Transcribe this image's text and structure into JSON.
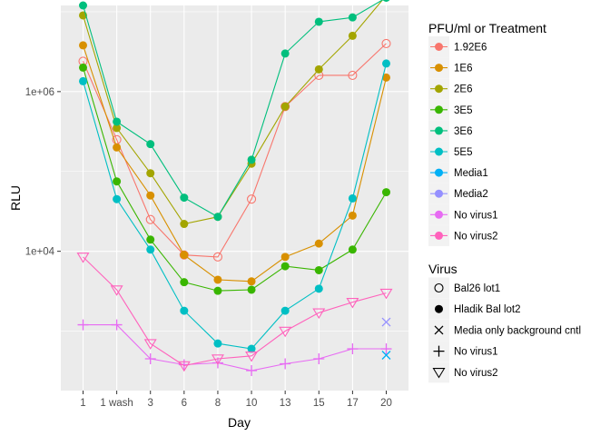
{
  "chart_data": {
    "type": "line",
    "xlabel": "Day",
    "ylabel": "RLU",
    "y_scale": "log10",
    "ylim": [
      180,
      12000000
    ],
    "y_ticks": [
      {
        "value": 10000,
        "label": "1e+04"
      },
      {
        "value": 1000000,
        "label": "1e+06"
      }
    ],
    "categories": [
      "1",
      "1 wash",
      "3",
      "6",
      "8",
      "10",
      "13",
      "15",
      "17",
      "20"
    ],
    "grid": true,
    "legend_position": "right",
    "color_legend": {
      "title": "PFU/ml or Treatment",
      "entries": [
        {
          "label": "1.92E6",
          "color": "#F8766D"
        },
        {
          "label": "1E6",
          "color": "#D89000"
        },
        {
          "label": "2E6",
          "color": "#A3A500"
        },
        {
          "label": "3E5",
          "color": "#39B600"
        },
        {
          "label": "3E6",
          "color": "#00BF7D"
        },
        {
          "label": "5E5",
          "color": "#00BFC4"
        },
        {
          "label": "Media1",
          "color": "#00B0F6"
        },
        {
          "label": "Media2",
          "color": "#9590FF"
        },
        {
          "label": "No virus1",
          "color": "#E76BF3"
        },
        {
          "label": "No virus2",
          "color": "#FF62BC"
        }
      ]
    },
    "shape_legend": {
      "title": "Virus",
      "entries": [
        {
          "label": "Bal26 lot1",
          "shape": "open-circle"
        },
        {
          "label": "Hladik Bal lot2",
          "shape": "filled-circle"
        },
        {
          "label": "Media only background cntl",
          "shape": "cross-x"
        },
        {
          "label": "No virus1",
          "shape": "plus"
        },
        {
          "label": "No virus2",
          "shape": "open-triangle-down"
        }
      ]
    },
    "series": [
      {
        "name": "1.92E6",
        "color": "#F8766D",
        "shape": "open-circle",
        "values": [
          2400000,
          250000,
          25000,
          9000,
          8500,
          45000,
          650000,
          1600000,
          1600000,
          4000000
        ]
      },
      {
        "name": "1E6",
        "color": "#D89000",
        "shape": "filled-circle",
        "values": [
          3800000,
          200000,
          50000,
          9000,
          4400,
          4200,
          8500,
          12500,
          28000,
          1500000
        ]
      },
      {
        "name": "2E6",
        "color": "#A3A500",
        "shape": "filled-circle",
        "values": [
          9000000,
          350000,
          95000,
          22000,
          27000,
          125000,
          650000,
          1900000,
          5000000,
          16000000
        ]
      },
      {
        "name": "3E5",
        "color": "#39B600",
        "shape": "filled-circle",
        "values": [
          2000000,
          75000,
          14000,
          4100,
          3200,
          3300,
          6500,
          5800,
          10500,
          55000
        ]
      },
      {
        "name": "3E6",
        "color": "#00BF7D",
        "shape": "filled-circle",
        "values": [
          12000000,
          420000,
          220000,
          47000,
          27000,
          140000,
          3000000,
          7500000,
          8500000,
          15000000
        ]
      },
      {
        "name": "5E5",
        "color": "#00BFC4",
        "shape": "filled-circle",
        "values": [
          1350000,
          45000,
          10500,
          1800,
          700,
          600,
          1800,
          3400,
          46000,
          2250000
        ]
      },
      {
        "name": "No virus1",
        "color": "#E76BF3",
        "shape": "plus",
        "values": [
          1200,
          1200,
          450,
          380,
          400,
          320,
          390,
          450,
          600,
          600
        ]
      },
      {
        "name": "No virus2",
        "color": "#FF62BC",
        "shape": "open-triangle-down",
        "values": [
          8500,
          3300,
          700,
          370,
          450,
          490,
          1000,
          1700,
          2300,
          3000
        ]
      }
    ],
    "single_points": [
      {
        "name": "Media1",
        "color": "#00B0F6",
        "shape": "cross-x",
        "category": "20",
        "value": 500
      },
      {
        "name": "Media2",
        "color": "#9590FF",
        "shape": "cross-x",
        "category": "20",
        "value": 1300
      }
    ]
  }
}
